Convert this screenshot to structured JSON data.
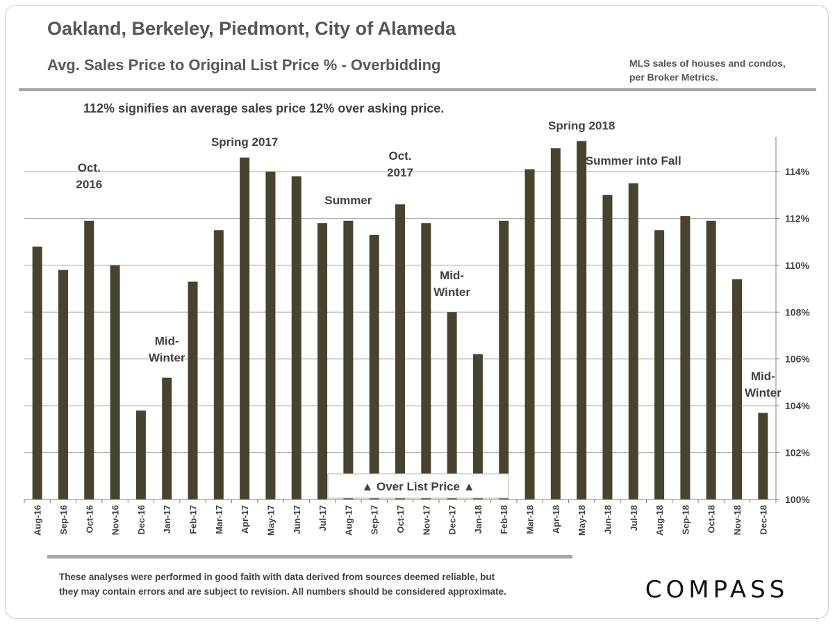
{
  "header": {
    "title": "Oakland, Berkeley, Piedmont, City of Alameda",
    "subtitle": "Avg. Sales Price to Original List Price % - Overbidding",
    "source_line1": "MLS sales of houses and condos,",
    "source_line2": "per Broker Metrics."
  },
  "caption": "112% signifies an average sales price 12% over asking price.",
  "chart_data": {
    "type": "bar",
    "categories": [
      "Aug-16",
      "Sep-16",
      "Oct-16",
      "Nov-16",
      "Dec-16",
      "Jan-17",
      "Feb-17",
      "Mar-17",
      "Apr-17",
      "May-17",
      "Jun-17",
      "Jul-17",
      "Aug-17",
      "Sep-17",
      "Oct-17",
      "Nov-17",
      "Dec-17",
      "Jan-18",
      "Feb-18",
      "Mar-18",
      "Apr-18",
      "May-18",
      "Jun-18",
      "Jul-18",
      "Aug-18",
      "Sep-18",
      "Oct-18",
      "Nov-18",
      "Dec-18"
    ],
    "values": [
      110.8,
      109.8,
      111.9,
      110.0,
      103.8,
      105.2,
      109.3,
      111.5,
      114.6,
      114.0,
      113.8,
      111.8,
      111.9,
      111.3,
      112.6,
      111.8,
      108.0,
      106.2,
      111.9,
      114.1,
      115.0,
      115.3,
      113.0,
      113.5,
      111.5,
      112.1,
      111.9,
      109.4,
      103.7
    ],
    "bar_color": "#48432f",
    "ylim": [
      100,
      115.5
    ],
    "yticks": [
      "100%",
      "102%",
      "104%",
      "106%",
      "108%",
      "110%",
      "112%",
      "114%"
    ],
    "y_axis_side": "right",
    "grid": true,
    "legend_label": "Over List Price",
    "legend_symbol": "▲",
    "annotations": [
      {
        "lines": [
          "Oct.",
          "2016"
        ],
        "category": "Oct-16",
        "value": 114.0
      },
      {
        "lines": [
          "Mid-",
          "Winter"
        ],
        "category": "Jan-17",
        "value": 106.6
      },
      {
        "lines": [
          "Spring 2017"
        ],
        "category": "Apr-17",
        "value": 115.1
      },
      {
        "lines": [
          "Summer"
        ],
        "category": "Aug-17",
        "value": 112.6
      },
      {
        "lines": [
          "Oct.",
          "2017"
        ],
        "category": "Oct-17",
        "value": 114.5
      },
      {
        "lines": [
          "Mid-",
          "Winter"
        ],
        "category": "Dec-17",
        "value": 109.4
      },
      {
        "lines": [
          "Spring 2018"
        ],
        "category": "May-18",
        "value": 115.8
      },
      {
        "lines": [
          "Summer into Fall"
        ],
        "category": "Jul-18",
        "value": 114.3
      },
      {
        "lines": [
          "Mid-",
          "Winter"
        ],
        "category": "Dec-18",
        "value": 105.1
      }
    ]
  },
  "footer": {
    "disclaimer_line1": "These analyses were performed in good faith with data derived from sources deemed reliable, but",
    "disclaimer_line2": "they may contain errors and are subject to revision. All numbers should be considered  approximate.",
    "logo_text": "COMPASS"
  }
}
